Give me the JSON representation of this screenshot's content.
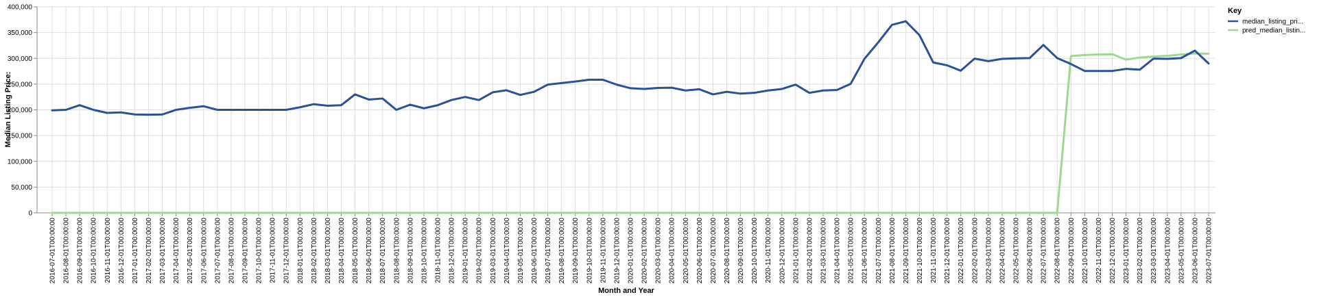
{
  "chart_data": {
    "type": "line",
    "xlabel": "Month and Year",
    "ylabel": "Median Listing Price:",
    "ylim": [
      0,
      400000
    ],
    "yticks": [
      "0",
      "50,000",
      "100,000",
      "150,000",
      "200,000",
      "250,000",
      "300,000",
      "350,000",
      "400,000"
    ],
    "grid": true,
    "legend": {
      "title": "Key",
      "placement": "top-right"
    },
    "x": [
      "2016-07-01T00:00:00",
      "2016-08-01T00:00:00",
      "2016-09-01T00:00:00",
      "2016-10-01T00:00:00",
      "2016-11-01T00:00:00",
      "2016-12-01T00:00:00",
      "2017-01-01T00:00:00",
      "2017-02-01T00:00:00",
      "2017-03-01T00:00:00",
      "2017-04-01T00:00:00",
      "2017-05-01T00:00:00",
      "2017-06-01T00:00:00",
      "2017-07-01T00:00:00",
      "2017-08-01T00:00:00",
      "2017-09-01T00:00:00",
      "2017-10-01T00:00:00",
      "2017-11-01T00:00:00",
      "2017-12-01T00:00:00",
      "2018-01-01T00:00:00",
      "2018-02-01T00:00:00",
      "2018-03-01T00:00:00",
      "2018-04-01T00:00:00",
      "2018-05-01T00:00:00",
      "2018-06-01T00:00:00",
      "2018-07-01T00:00:00",
      "2018-08-01T00:00:00",
      "2018-09-01T00:00:00",
      "2018-10-01T00:00:00",
      "2018-11-01T00:00:00",
      "2018-12-01T00:00:00",
      "2019-01-01T00:00:00",
      "2019-02-01T00:00:00",
      "2019-03-01T00:00:00",
      "2019-04-01T00:00:00",
      "2019-05-01T00:00:00",
      "2019-06-01T00:00:00",
      "2019-07-01T00:00:00",
      "2019-08-01T00:00:00",
      "2019-09-01T00:00:00",
      "2019-10-01T00:00:00",
      "2019-11-01T00:00:00",
      "2019-12-01T00:00:00",
      "2020-01-01T00:00:00",
      "2020-02-01T00:00:00",
      "2020-03-01T00:00:00",
      "2020-04-01T00:00:00",
      "2020-05-01T00:00:00",
      "2020-06-01T00:00:00",
      "2020-07-01T00:00:00",
      "2020-08-01T00:00:00",
      "2020-09-01T00:00:00",
      "2020-10-01T00:00:00",
      "2020-11-01T00:00:00",
      "2020-12-01T00:00:00",
      "2021-01-01T00:00:00",
      "2021-02-01T00:00:00",
      "2021-03-01T00:00:00",
      "2021-04-01T00:00:00",
      "2021-05-01T00:00:00",
      "2021-06-01T00:00:00",
      "2021-07-01T00:00:00",
      "2021-08-01T00:00:00",
      "2021-09-01T00:00:00",
      "2021-10-01T00:00:00",
      "2021-11-01T00:00:00",
      "2021-12-01T00:00:00",
      "2022-01-01T00:00:00",
      "2022-02-01T00:00:00",
      "2022-03-01T00:00:00",
      "2022-04-01T00:00:00",
      "2022-05-01T00:00:00",
      "2022-06-01T00:00:00",
      "2022-07-01T00:00:00",
      "2022-08-01T00:00:00",
      "2022-09-01T00:00:00",
      "2022-10-01T00:00:00",
      "2022-11-01T00:00:00",
      "2022-12-01T00:00:00",
      "2023-01-01T00:00:00",
      "2023-02-01T00:00:00",
      "2023-03-01T00:00:00",
      "2023-04-01T00:00:00",
      "2023-05-01T00:00:00",
      "2023-06-01T00:00:00",
      "2023-07-01T00:00:00"
    ],
    "series": [
      {
        "name": "median_listing_pri...",
        "color": "#2a5298",
        "values": [
          199000,
          200000,
          209000,
          200000,
          194000,
          195000,
          191000,
          190500,
          191000,
          200000,
          204000,
          207000,
          200000,
          200000,
          200000,
          200000,
          200000,
          200000,
          205000,
          211000,
          208000,
          209000,
          230000,
          220000,
          222000,
          200000,
          210000,
          203000,
          209000,
          219000,
          225000,
          219000,
          234000,
          238000,
          229000,
          235000,
          249000,
          252000,
          255000,
          258500,
          258500,
          249000,
          242000,
          240500,
          242500,
          243000,
          237500,
          240000,
          230000,
          235000,
          231500,
          233000,
          237500,
          240500,
          249000,
          233000,
          237500,
          238500,
          250500,
          299000,
          331000,
          365000,
          372000,
          345000,
          292000,
          286500,
          276000,
          299500,
          294500,
          299000,
          300000,
          300500,
          326000,
          300500,
          289000,
          275500,
          275500,
          275500,
          279500,
          278000,
          299500,
          299000,
          300500,
          315000,
          290000
        ]
      },
      {
        "name": "pred_median_listin...",
        "color": "#9fd88e",
        "values": [
          0,
          0,
          0,
          0,
          0,
          0,
          0,
          0,
          0,
          0,
          0,
          0,
          0,
          0,
          0,
          0,
          0,
          0,
          0,
          0,
          0,
          0,
          0,
          0,
          0,
          0,
          0,
          0,
          0,
          0,
          0,
          0,
          0,
          0,
          0,
          0,
          0,
          0,
          0,
          0,
          0,
          0,
          0,
          0,
          0,
          0,
          0,
          0,
          0,
          0,
          0,
          0,
          0,
          0,
          0,
          0,
          0,
          0,
          0,
          0,
          0,
          0,
          0,
          0,
          0,
          0,
          0,
          0,
          0,
          0,
          0,
          0,
          0,
          0,
          304500,
          306500,
          307500,
          308000,
          297500,
          301500,
          303500,
          305000,
          307500,
          309500,
          309000
        ]
      }
    ]
  }
}
